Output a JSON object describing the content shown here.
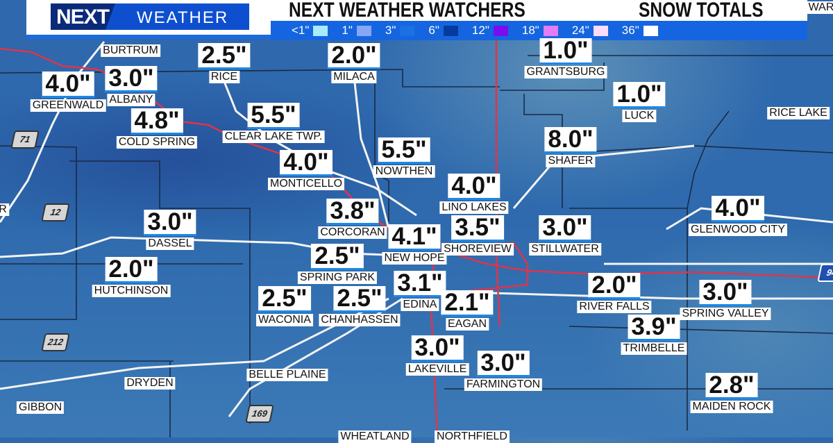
{
  "header": {
    "logo_next": "NEXT",
    "logo_weather": "WEATHER",
    "title": "NEXT WEATHER WATCHERS",
    "subtitle": "SNOW TOTALS"
  },
  "legend": [
    {
      "label": "<1\"",
      "color": "#a8ecfb"
    },
    {
      "label": "1\"",
      "color": "#86a6f6"
    },
    {
      "label": "3\"",
      "color": "#1a72e2"
    },
    {
      "label": "6\"",
      "color": "#063b9e"
    },
    {
      "label": "12\"",
      "color": "#7b0cf0"
    },
    {
      "label": "18\"",
      "color": "#e37cf5"
    },
    {
      "label": "24\"",
      "color": "#fddcfb"
    },
    {
      "label": "36\"",
      "color": "#ffffff"
    }
  ],
  "stations": [
    {
      "city": "BURTRUM",
      "value": ""
    },
    {
      "city": "RICE",
      "value": "2.5\""
    },
    {
      "city": "MILACA",
      "value": "2.0\""
    },
    {
      "city": "GRANTSBURG",
      "value": "1.0\""
    },
    {
      "city": "GREENWALD",
      "value": "4.0\""
    },
    {
      "city": "ALBANY",
      "value": "3.0\""
    },
    {
      "city": "COLD SPRING",
      "value": "4.8\""
    },
    {
      "city": "CLEAR LAKE TWP.",
      "value": "5.5\""
    },
    {
      "city": "LUCK",
      "value": "1.0\""
    },
    {
      "city": "RICE LAKE",
      "value": ""
    },
    {
      "city": "SHAFER",
      "value": "8.0\""
    },
    {
      "city": "NOWTHEN",
      "value": "5.5\""
    },
    {
      "city": "MONTICELLO",
      "value": "4.0\""
    },
    {
      "city": "LINO LAKES",
      "value": "4.0\""
    },
    {
      "city": "CORCORAN",
      "value": "3.8\""
    },
    {
      "city": "GLENWOOD CITY",
      "value": "4.0\""
    },
    {
      "city": "DASSEL",
      "value": "3.0\""
    },
    {
      "city": "STILLWATER",
      "value": "3.0\""
    },
    {
      "city": "SHOREVIEW",
      "value": "3.5\""
    },
    {
      "city": "NEW HOPE",
      "value": "4.1\""
    },
    {
      "city": "SPRING PARK",
      "value": "2.5\""
    },
    {
      "city": "HUTCHINSON",
      "value": "2.0\""
    },
    {
      "city": "EDINA",
      "value": "3.1\""
    },
    {
      "city": "RIVER FALLS",
      "value": "2.0\""
    },
    {
      "city": "SPRING VALLEY",
      "value": "3.0\""
    },
    {
      "city": "WACONIA",
      "value": "2.5\""
    },
    {
      "city": "CHANHASSEN",
      "value": "2.5\""
    },
    {
      "city": "EAGAN",
      "value": "2.1\""
    },
    {
      "city": "TRIMBELLE",
      "value": "3.9\""
    },
    {
      "city": "LAKEVILLE",
      "value": "3.0\""
    },
    {
      "city": "FARMINGTON",
      "value": "3.0\""
    },
    {
      "city": "MAIDEN ROCK",
      "value": "2.8\""
    },
    {
      "city": "BELLE PLAINE",
      "value": ""
    },
    {
      "city": "DRYDEN",
      "value": ""
    },
    {
      "city": "GIBBON",
      "value": ""
    },
    {
      "city": "WHEATLAND",
      "value": ""
    },
    {
      "city": "NORTHFIELD",
      "value": ""
    },
    {
      "city": "WAR",
      "value": ""
    },
    {
      "city": "R",
      "value": ""
    }
  ],
  "shields": [
    {
      "number": "71",
      "type": "us-highway"
    },
    {
      "number": "12",
      "type": "us-highway"
    },
    {
      "number": "212",
      "type": "us-highway"
    },
    {
      "number": "169",
      "type": "us-highway"
    },
    {
      "number": "94",
      "type": "interstate"
    }
  ]
}
